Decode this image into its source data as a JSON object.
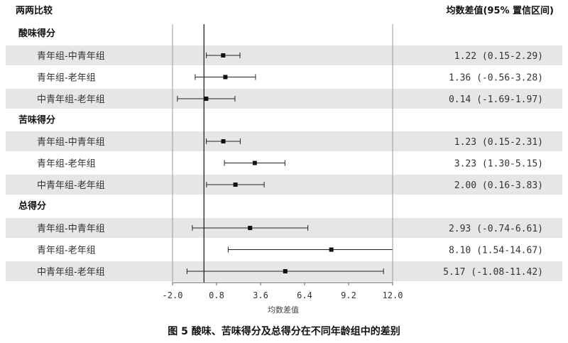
{
  "header": {
    "left": "两两比较",
    "right": "均数差值(95% 置信区间)"
  },
  "caption": "图 5   酸味、苦味得分及总得分在不同年龄组中的差别",
  "chart_data": {
    "type": "forest",
    "xlabel": "均数差值",
    "xlim": [
      -2.0,
      12.0
    ],
    "xticks": [
      "-2.0",
      "0.8",
      "3.6",
      "6.4",
      "9.2",
      "12.0"
    ],
    "reference_line": 0,
    "groups": [
      {
        "name": "酸味得分",
        "rows": [
          {
            "label": "青年组-中青年组",
            "mean": 1.22,
            "lo": 0.15,
            "hi": 2.29,
            "text": "1.22 (0.15-2.29)"
          },
          {
            "label": "青年组-老年组",
            "mean": 1.36,
            "lo": -0.56,
            "hi": 3.28,
            "text": "1.36 (-0.56-3.28)"
          },
          {
            "label": "中青年组-老年组",
            "mean": 0.14,
            "lo": -1.69,
            "hi": 1.97,
            "text": "0.14 (-1.69-1.97)"
          }
        ]
      },
      {
        "name": "苦味得分",
        "rows": [
          {
            "label": "青年组-中青年组",
            "mean": 1.23,
            "lo": 0.15,
            "hi": 2.31,
            "text": "1.23 (0.15-2.31)"
          },
          {
            "label": "青年组-老年组",
            "mean": 3.23,
            "lo": 1.3,
            "hi": 5.15,
            "text": "3.23 (1.30-5.15)"
          },
          {
            "label": "中青年组-老年组",
            "mean": 2.0,
            "lo": 0.16,
            "hi": 3.83,
            "text": "2.00 (0.16-3.83)"
          }
        ]
      },
      {
        "name": "总得分",
        "rows": [
          {
            "label": "青年组-中青年组",
            "mean": 2.93,
            "lo": -0.74,
            "hi": 6.61,
            "text": "2.93 (-0.74-6.61)"
          },
          {
            "label": "青年组-老年组",
            "mean": 8.1,
            "lo": 1.54,
            "hi": 14.67,
            "text": "8.10 (1.54-14.67)"
          },
          {
            "label": "中青年组-老年组",
            "mean": 5.17,
            "lo": -1.08,
            "hi": 11.42,
            "text": "5.17 (-1.08-11.42)"
          }
        ]
      }
    ]
  }
}
